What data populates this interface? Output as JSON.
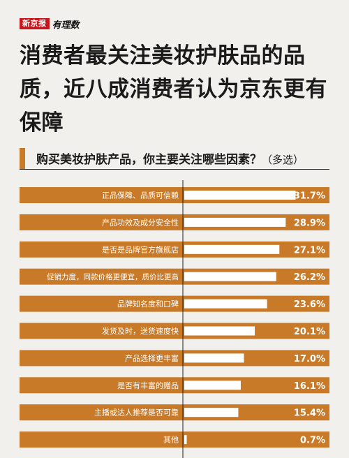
{
  "brand": {
    "name": "新京报",
    "column": "有理数"
  },
  "headline": "消费者最关注美妆护肤品的品质，近八成消费者认为京东更有保障",
  "subtitle": {
    "question": "购买美妆护肤产品，你主要关注哪些因素？",
    "note": "（多选）"
  },
  "colors": {
    "bar": "#c97a28",
    "accent": "#c97a28",
    "brand_red": "#c8161d",
    "fill": "#ffffff"
  },
  "chart_data": {
    "type": "bar",
    "orientation": "horizontal",
    "categories": [
      "正品保障、品质可信赖",
      "产品功效及成分安全性",
      "是否是品牌官方旗舰店",
      "促销力度，同款价格更便宜，质价比更高",
      "品牌知名度和口碑",
      "发货及时，送货速度快",
      "产品选择更丰富",
      "是否有丰富的赠品",
      "主播或达人推荐是否可靠",
      "其他"
    ],
    "values": [
      31.7,
      28.9,
      27.1,
      26.2,
      23.6,
      20.1,
      17.0,
      16.1,
      15.4,
      0.7
    ],
    "value_labels": [
      "31.7%",
      "28.9%",
      "27.1%",
      "26.2%",
      "23.6%",
      "20.1%",
      "17.0%",
      "16.1%",
      "15.4%",
      "0.7%"
    ],
    "unit": "%",
    "xlim": [
      0,
      36
    ]
  }
}
